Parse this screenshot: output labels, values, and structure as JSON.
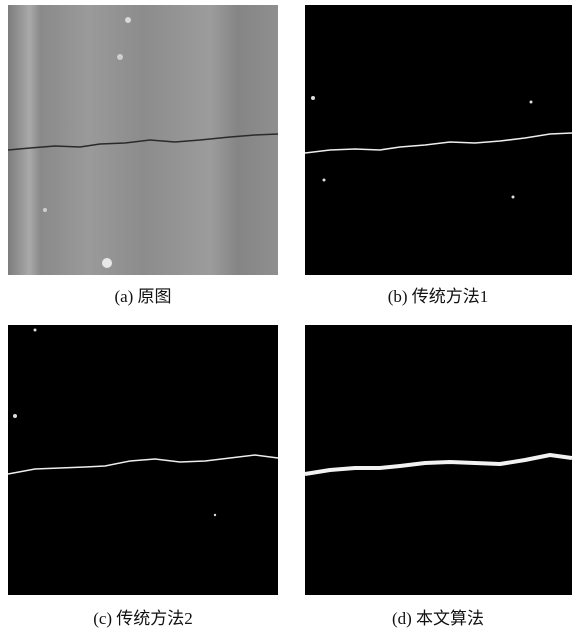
{
  "panels": [
    {
      "caption": "(a) 原图"
    },
    {
      "caption": "(b) 传统方法1"
    },
    {
      "caption": "(c) 传统方法2"
    },
    {
      "caption": "(d) 本文算法"
    }
  ]
}
